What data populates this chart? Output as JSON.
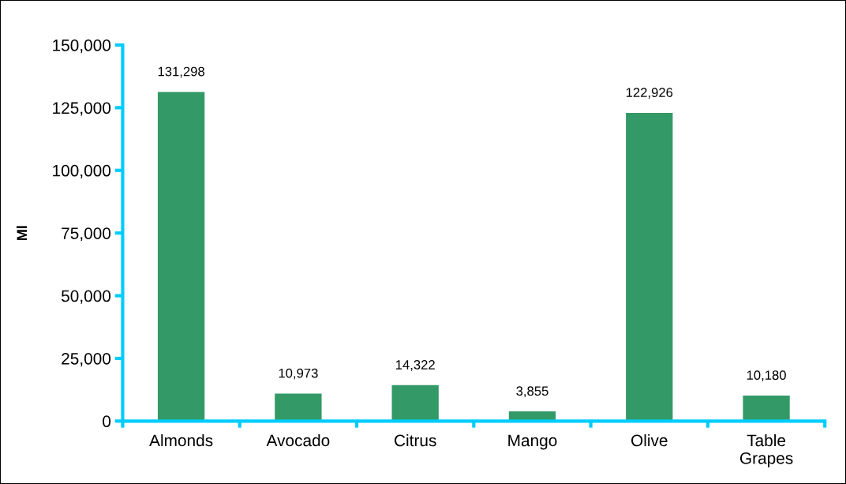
{
  "chart_data": {
    "type": "bar",
    "ylabel": "Ml",
    "categories": [
      "Almonds",
      "Avocado",
      "Citrus",
      "Mango",
      "Olive",
      "Table\nGrapes"
    ],
    "values": [
      131298,
      10973,
      14322,
      3855,
      122926,
      10180
    ],
    "color": "#339966",
    "ylim": [
      0,
      150000
    ],
    "yticks": [
      {
        "value": 0,
        "label": "0"
      },
      {
        "value": 25000,
        "label": "25,000"
      },
      {
        "value": 50000,
        "label": "50,000"
      },
      {
        "value": 75000,
        "label": "75,000"
      },
      {
        "value": 100000,
        "label": "100,000"
      },
      {
        "value": 125000,
        "label": "125,000"
      },
      {
        "value": 150000,
        "label": "150,000"
      }
    ],
    "value_labels": [
      "131,298",
      "10,973",
      "14,322",
      "3,855",
      "122,926",
      "10,180"
    ],
    "grid": false,
    "legend": false
  }
}
